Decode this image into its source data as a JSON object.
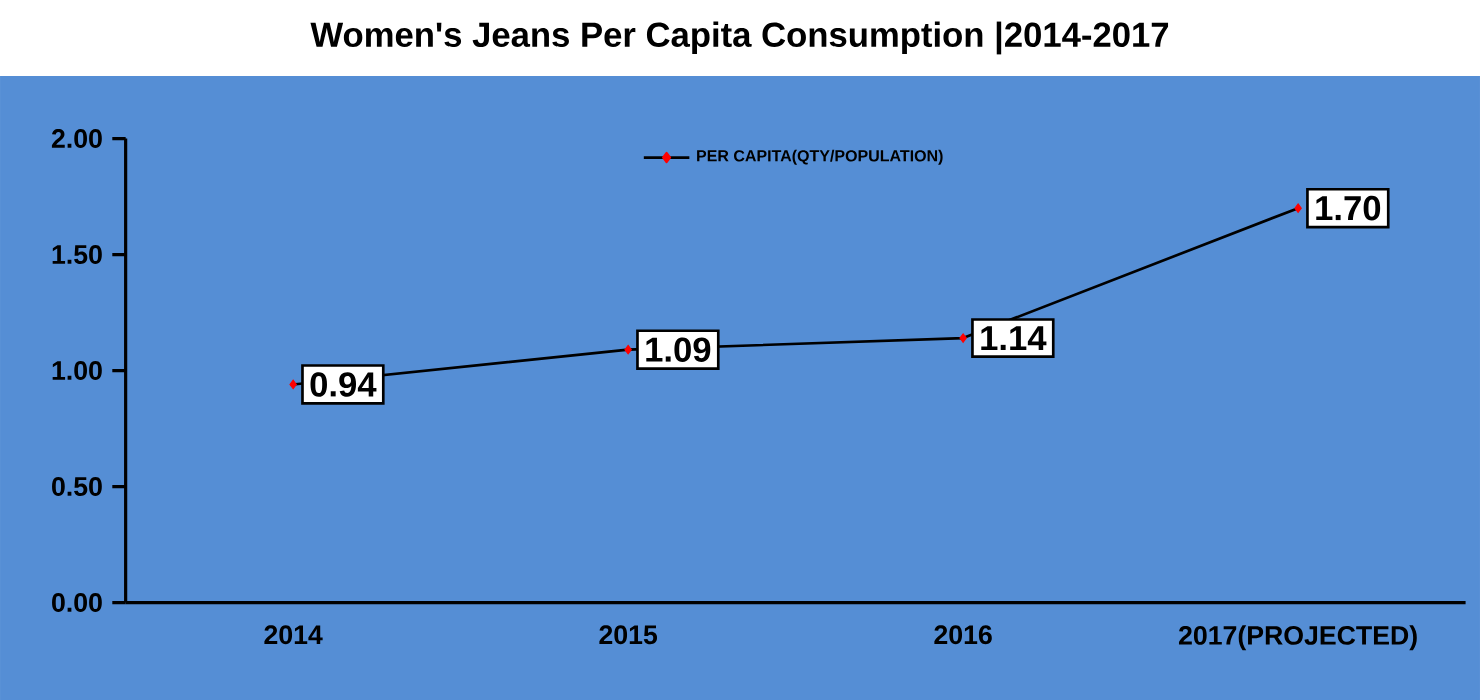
{
  "chart_data": {
    "type": "line",
    "title": "Women's Jeans Per Capita Consumption  |2014-2017",
    "categories": [
      "2014",
      "2015",
      "2016",
      "2017(PROJECTED)"
    ],
    "series": [
      {
        "name": "PER CAPITA(QTY/POPULATION)",
        "color": "#000000",
        "colors": [
          "#ff0000",
          "#ff0000",
          "#ff0000",
          "#ff0000"
        ],
        "values": [
          0.94,
          1.09,
          1.14,
          1.7
        ],
        "value_labels": [
          "0.94",
          "1.09",
          "1.14",
          "1.70"
        ]
      }
    ],
    "ylim": [
      0,
      2
    ],
    "yticks": [
      {
        "value": 0,
        "label": "0.00"
      },
      {
        "value": 0.5,
        "label": "0.50"
      },
      {
        "value": 1,
        "label": "1.00"
      },
      {
        "value": 1.5,
        "label": "1.50"
      },
      {
        "value": 2,
        "label": "2.00"
      }
    ],
    "legend": "top",
    "marker": "diamond",
    "line_style": "solid",
    "grid": false
  }
}
